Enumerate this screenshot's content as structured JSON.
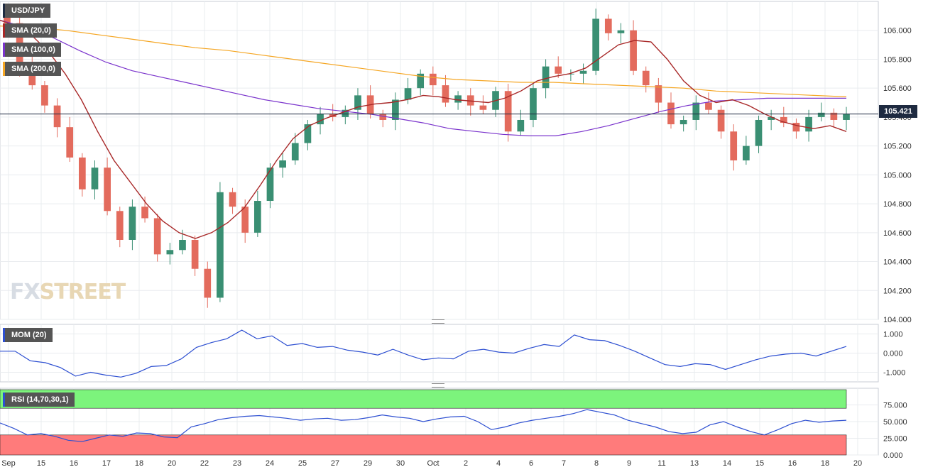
{
  "legends": {
    "symbol": "USD/JPY",
    "sma20": "SMA (20,0)",
    "sma100": "SMA (100,0)",
    "sma200": "SMA (200,0)",
    "mom": "MOM (20)",
    "rsi": "RSI (14,70,30,1)"
  },
  "current_price": "105.421",
  "watermark": {
    "fx": "FX",
    "street": "STREET"
  },
  "colors": {
    "up": "#3a8f73",
    "down": "#e36b5d",
    "sma20": "#a82828",
    "sma100": "#7a33cc",
    "sma200": "#f5a623",
    "momentum": "#2d4fd1",
    "rsi": "#2d4fd1",
    "overbought_zone": "#7cf47c",
    "oversold_zone": "#ff7b7b",
    "price_line": "#1e2a40",
    "grid": "#e9ecef"
  },
  "chart_data": [
    {
      "type": "candlestick",
      "title": "USD/JPY",
      "ylim": [
        104.0,
        106.2
      ],
      "yticks": [
        104.0,
        104.2,
        104.4,
        104.6,
        104.8,
        105.0,
        105.2,
        105.4,
        105.6,
        105.8,
        106.0
      ],
      "ytick_labels": [
        "104.000",
        "104.200",
        "104.400",
        "104.600",
        "104.800",
        "105.000",
        "105.200",
        "105.400",
        "105.600",
        "105.800",
        "106.000"
      ],
      "xtick_labels": [
        "Sep",
        "15",
        "16",
        "17",
        "18",
        "20",
        "22",
        "23",
        "24",
        "25",
        "27",
        "29",
        "30",
        "Oct",
        "2",
        "4",
        "6",
        "7",
        "8",
        "9",
        "11",
        "13",
        "14",
        "15",
        "16",
        "18",
        "20"
      ],
      "last_price": 105.421,
      "candle_closes": [
        106.05,
        105.75,
        105.62,
        105.48,
        105.33,
        105.12,
        104.9,
        105.05,
        104.75,
        104.55,
        104.78,
        104.7,
        104.45,
        104.48,
        104.55,
        104.35,
        104.15,
        104.88,
        104.78,
        104.6,
        104.82,
        105.05,
        105.1,
        105.22,
        105.35,
        105.42,
        105.4,
        105.45,
        105.55,
        105.42,
        105.38,
        105.52,
        105.6,
        105.7,
        105.62,
        105.5,
        105.55,
        105.48,
        105.45,
        105.58,
        105.3,
        105.38,
        105.6,
        105.75,
        105.7,
        105.7,
        105.72,
        106.08,
        105.98,
        106.0,
        105.72,
        105.62,
        105.5,
        105.35,
        105.38,
        105.5,
        105.45,
        105.3,
        105.1,
        105.2,
        105.38,
        105.4,
        105.36,
        105.3,
        105.4,
        105.43,
        105.38,
        105.42
      ],
      "sma20": [
        106.07,
        106.03,
        105.96,
        105.85,
        105.7,
        105.52,
        105.3,
        105.1,
        104.95,
        104.8,
        104.68,
        104.6,
        104.56,
        104.6,
        104.67,
        104.77,
        104.93,
        105.1,
        105.25,
        105.34,
        105.39,
        105.43,
        105.47,
        105.49,
        105.5,
        105.52,
        105.55,
        105.54,
        105.52,
        105.51,
        105.5,
        105.53,
        105.58,
        105.65,
        105.68,
        105.7,
        105.74,
        105.82,
        105.9,
        105.93,
        105.92,
        105.8,
        105.65,
        105.55,
        105.5,
        105.52,
        105.48,
        105.42,
        105.37,
        105.34,
        105.32,
        105.34,
        105.3
      ],
      "sma100": [
        106.07,
        106.02,
        105.95,
        105.86,
        105.78,
        105.72,
        105.68,
        105.64,
        105.6,
        105.56,
        105.52,
        105.49,
        105.46,
        105.44,
        105.42,
        105.39,
        105.36,
        105.32,
        105.3,
        105.28,
        105.27,
        105.27,
        105.3,
        105.34,
        105.39,
        105.44,
        105.48,
        105.51,
        105.52,
        105.53,
        105.53,
        105.53,
        105.53
      ],
      "sma200": [
        106.03,
        106.02,
        106.0,
        105.97,
        105.94,
        105.91,
        105.88,
        105.86,
        105.83,
        105.8,
        105.77,
        105.74,
        105.71,
        105.68,
        105.66,
        105.65,
        105.64,
        105.64,
        105.63,
        105.62,
        105.61,
        105.6,
        105.58,
        105.57,
        105.56,
        105.55,
        105.54
      ]
    },
    {
      "type": "line",
      "title": "MOM (20)",
      "ylim": [
        -1.5,
        1.5
      ],
      "yticks": [
        1.0,
        0.0,
        -1.0
      ],
      "ytick_labels": [
        "1.000",
        "0.000",
        "-1.000"
      ],
      "values": [
        0.1,
        0.1,
        -0.4,
        -0.5,
        -0.75,
        -1.2,
        -1.0,
        -1.15,
        -1.25,
        -1.05,
        -0.7,
        -0.65,
        -0.3,
        0.3,
        0.55,
        0.75,
        1.2,
        0.75,
        0.9,
        0.4,
        0.5,
        0.3,
        0.35,
        0.15,
        0.05,
        -0.1,
        0.2,
        -0.1,
        -0.35,
        -0.25,
        -0.3,
        0.1,
        0.2,
        0.05,
        0.0,
        0.25,
        0.45,
        0.35,
        0.95,
        0.7,
        0.65,
        0.4,
        0.1,
        -0.25,
        -0.6,
        -0.7,
        -0.55,
        -0.6,
        -0.85,
        -0.6,
        -0.35,
        -0.15,
        -0.05,
        0.0,
        -0.15,
        0.1,
        0.35
      ]
    },
    {
      "type": "line",
      "title": "RSI (14,70,30,1)",
      "ylim": [
        0,
        100
      ],
      "yticks": [
        75,
        50,
        25,
        0
      ],
      "ytick_labels": [
        "75.000",
        "50.000",
        "25.000",
        "0.000"
      ],
      "overbought": 70,
      "oversold": 30,
      "values": [
        48,
        40,
        30,
        32,
        28,
        22,
        20,
        25,
        30,
        28,
        33,
        32,
        27,
        26,
        42,
        47,
        53,
        56,
        58,
        59,
        57,
        55,
        52,
        54,
        55,
        52,
        53,
        56,
        60,
        57,
        55,
        50,
        54,
        57,
        58,
        50,
        38,
        42,
        48,
        52,
        55,
        58,
        62,
        68,
        64,
        60,
        52,
        47,
        42,
        35,
        32,
        34,
        45,
        50,
        42,
        35,
        30,
        38,
        47,
        52,
        49,
        51,
        52
      ]
    }
  ]
}
